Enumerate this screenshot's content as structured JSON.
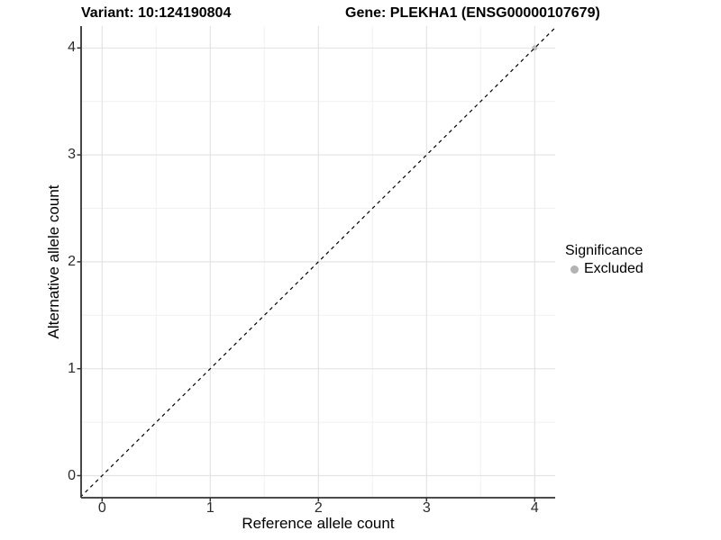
{
  "titles": {
    "variant": "Variant: 10:124190804",
    "gene": "Gene: PLEKHA1 (ENSG00000107679)"
  },
  "axes": {
    "x": {
      "label": "Reference allele count",
      "tick_labels": [
        "0",
        "1",
        "2",
        "3",
        "4"
      ]
    },
    "y": {
      "label": "Alternative allele count",
      "tick_labels": [
        "0",
        "1",
        "2",
        "3",
        "4"
      ]
    }
  },
  "legend": {
    "title": "Significance",
    "items": [
      {
        "label": "Excluded",
        "marker": "circle-icon",
        "color": "#b3b3b3"
      }
    ]
  },
  "colors": {
    "background": "#ffffff",
    "grid_major": "#e4e4e4",
    "grid_minor": "#f1f1f1",
    "axis_line": "#333333",
    "tick_mark": "#333333",
    "reference_line": "#000000",
    "excluded_point": "#bdbdbd"
  },
  "chart_data": {
    "type": "scatter",
    "title": "Variant: 10:124190804 / Gene: PLEKHA1 (ENSG00000107679)",
    "xlabel": "Reference allele count",
    "ylabel": "Alternative allele count",
    "xlim": [
      -0.2,
      4.2
    ],
    "ylim": [
      -0.2,
      4.2
    ],
    "x_ticks": [
      0,
      1,
      2,
      3,
      4
    ],
    "y_ticks": [
      0,
      1,
      2,
      3,
      4
    ],
    "x_minor_ticks": [
      0.5,
      1.5,
      2.5,
      3.5
    ],
    "y_minor_ticks": [
      0.5,
      1.5,
      2.5,
      3.5
    ],
    "grid": "major+minor",
    "legend_position": "right",
    "series": [
      {
        "name": "Excluded",
        "color": "#bdbdbd",
        "points": [
          {
            "x": 4,
            "y": 4
          }
        ]
      }
    ],
    "reference_line": {
      "type": "identity y=x",
      "style": "dashed",
      "color": "#000000",
      "from": [
        -0.25,
        -0.25
      ],
      "to": [
        4.45,
        4.45
      ]
    }
  }
}
